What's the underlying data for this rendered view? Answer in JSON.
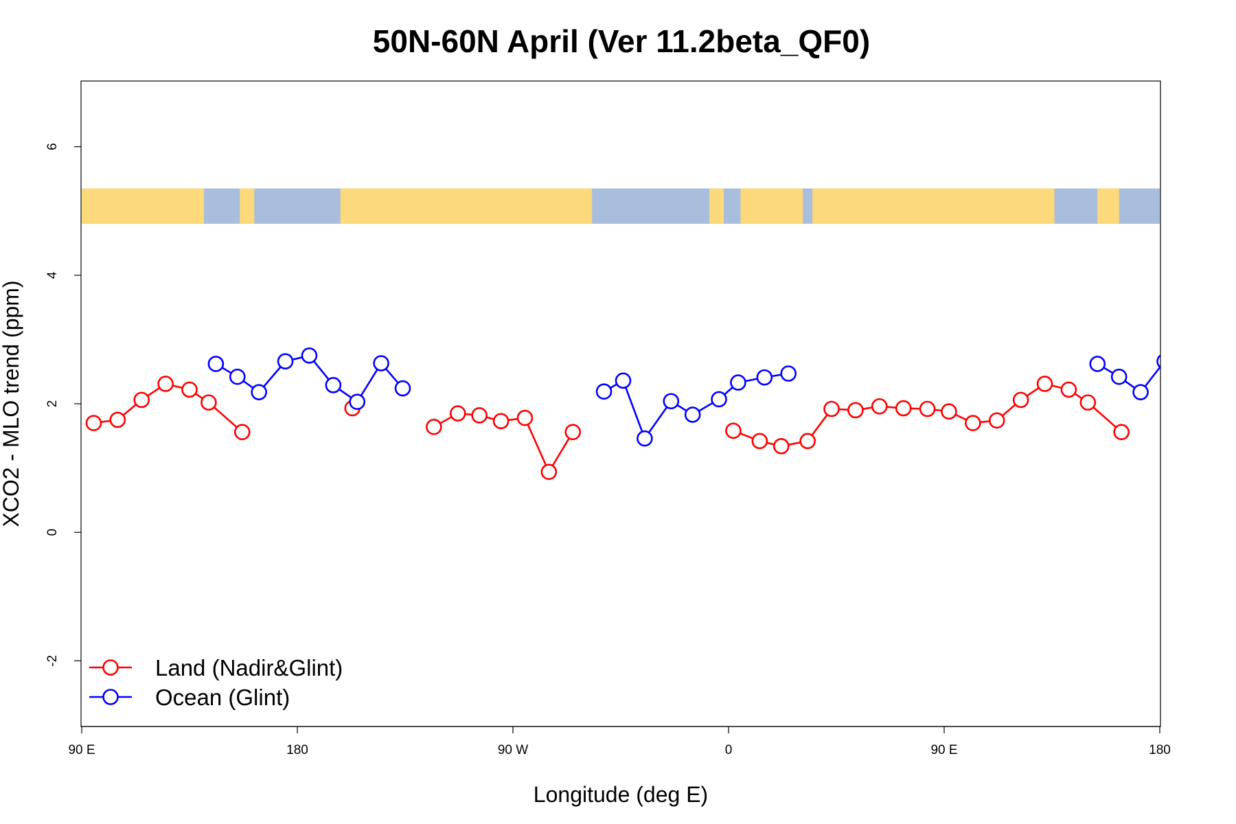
{
  "chart_data": {
    "type": "line",
    "title": "50N-60N April (Ver 11.2beta_QF0)",
    "xlabel": "Longitude (deg E)",
    "ylabel": "XCO2 - MLO trend (ppm)",
    "xlim": [
      90,
      540
    ],
    "ylim": [
      -3,
      7
    ],
    "x_ticks": [
      {
        "value": 90,
        "label": "90 E"
      },
      {
        "value": 180,
        "label": "180"
      },
      {
        "value": 270,
        "label": "90 W"
      },
      {
        "value": 360,
        "label": "0"
      },
      {
        "value": 450,
        "label": "90 E"
      },
      {
        "value": 540,
        "label": "180"
      }
    ],
    "y_ticks": [
      {
        "value": -2,
        "label": "-2"
      },
      {
        "value": 0,
        "label": "0"
      },
      {
        "value": 2,
        "label": "2"
      },
      {
        "value": 4,
        "label": "4"
      },
      {
        "value": 6,
        "label": "6"
      }
    ],
    "grid": false,
    "legend_position": "bottom-left",
    "map_strip": {
      "ymin": 4.8,
      "ymax": 5.35,
      "land_color": "#fcd97a",
      "ocean_color": "#a9bedd"
    },
    "series": [
      {
        "name": "Land (Nadir&Glint)",
        "color": "#ff0000",
        "segments": [
          [
            [
              95,
              1.7
            ],
            [
              105,
              1.75
            ],
            [
              115,
              2.06
            ],
            [
              125,
              2.31
            ],
            [
              135,
              2.22
            ],
            [
              143,
              2.02
            ],
            [
              157,
              1.56
            ]
          ],
          [
            [
              203,
              1.93
            ]
          ],
          [
            [
              237,
              1.64
            ],
            [
              247,
              1.85
            ],
            [
              256,
              1.82
            ],
            [
              265,
              1.73
            ],
            [
              275,
              1.78
            ],
            [
              285,
              0.94
            ],
            [
              295,
              1.56
            ]
          ],
          [
            [
              362,
              1.58
            ],
            [
              373,
              1.42
            ],
            [
              382,
              1.34
            ],
            [
              393,
              1.42
            ],
            [
              403,
              1.92
            ],
            [
              413,
              1.9
            ],
            [
              423,
              1.96
            ],
            [
              433,
              1.93
            ],
            [
              443,
              1.92
            ],
            [
              452,
              1.88
            ],
            [
              462,
              1.7
            ],
            [
              472,
              1.74
            ],
            [
              482,
              2.06
            ],
            [
              492,
              2.31
            ],
            [
              502,
              2.22
            ],
            [
              510,
              2.02
            ],
            [
              524,
              1.56
            ]
          ]
        ]
      },
      {
        "name": "Ocean (Glint)",
        "color": "#0000ff",
        "segments": [
          [
            [
              146,
              2.62
            ],
            [
              155,
              2.42
            ],
            [
              164,
              2.18
            ],
            [
              175,
              2.66
            ],
            [
              185,
              2.75
            ],
            [
              195,
              2.29
            ],
            [
              205,
              2.03
            ],
            [
              215,
              2.63
            ],
            [
              224,
              2.24
            ]
          ],
          [
            [
              308,
              2.19
            ],
            [
              316,
              2.36
            ],
            [
              325,
              1.46
            ],
            [
              336,
              2.04
            ],
            [
              345,
              1.83
            ],
            [
              356,
              2.07
            ],
            [
              364,
              2.33
            ],
            [
              375,
              2.41
            ],
            [
              385,
              2.47
            ]
          ],
          [
            [
              514,
              2.62
            ],
            [
              523,
              2.42
            ],
            [
              532,
              2.18
            ],
            [
              542,
              2.66
            ]
          ]
        ]
      }
    ]
  }
}
